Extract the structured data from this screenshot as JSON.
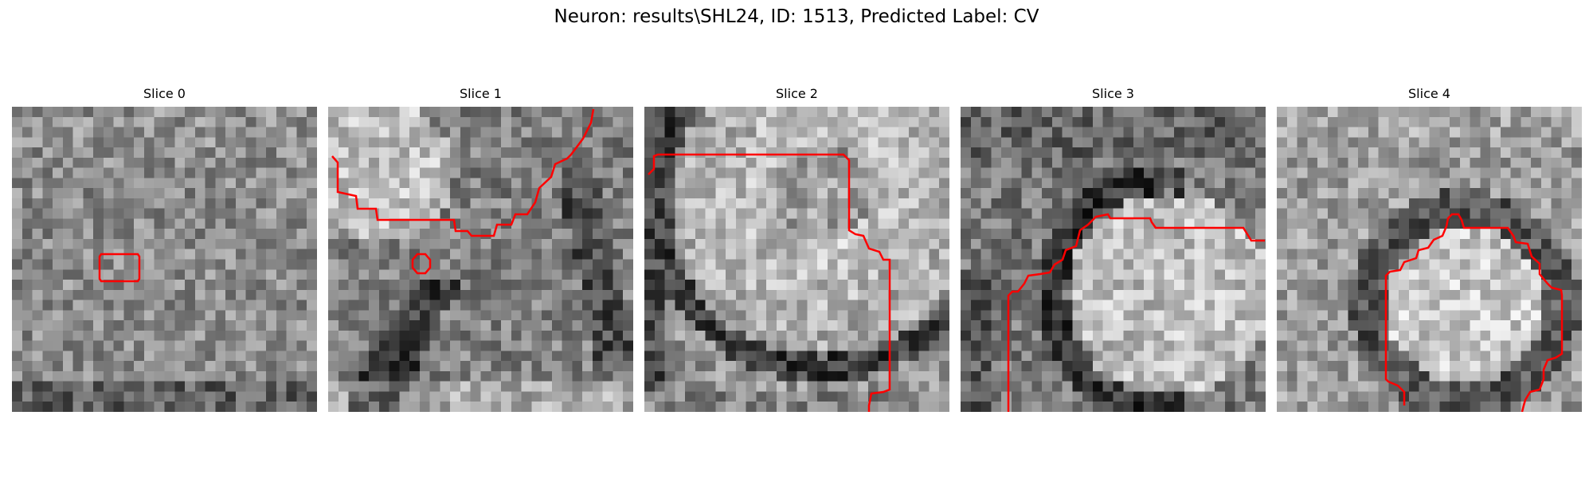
{
  "title": "Neuron: results\\SHL24, ID: 1513, Predicted Label: CV",
  "contour_color": "#ff0000",
  "slices": [
    {
      "label": "Slice 0"
    },
    {
      "label": "Slice 1"
    },
    {
      "label": "Slice 2"
    },
    {
      "label": "Slice 3"
    },
    {
      "label": "Slice 4"
    }
  ]
}
